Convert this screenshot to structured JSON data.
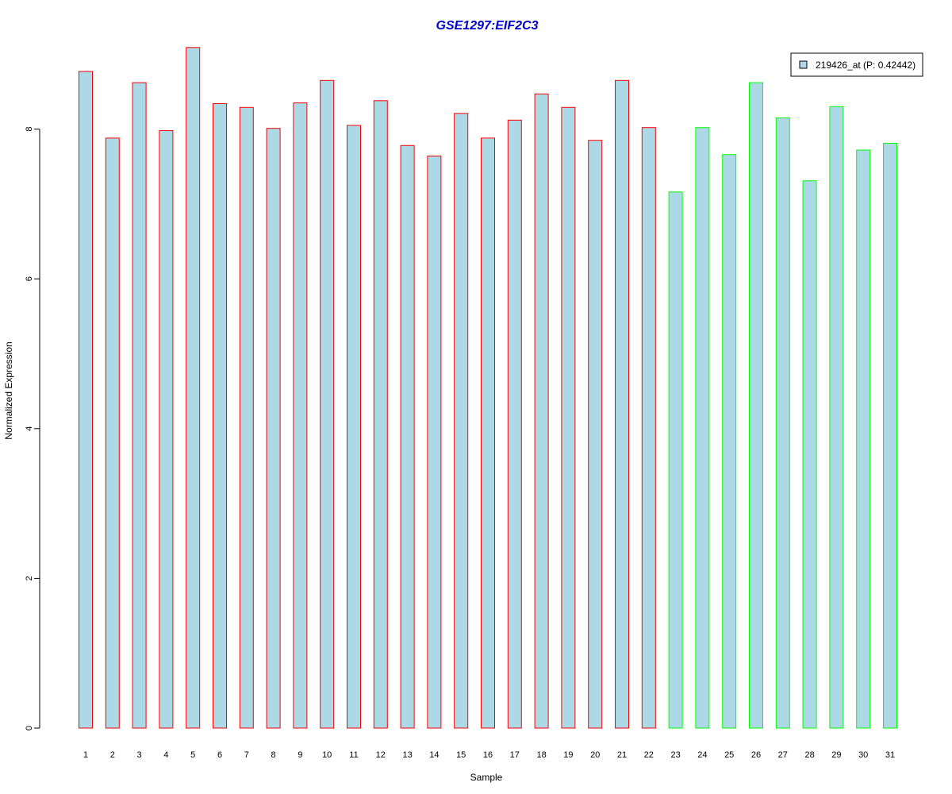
{
  "chart_data": {
    "type": "bar",
    "title": "GSE1297:EIF2C3",
    "xlabel": "Sample",
    "ylabel": "Normalized Expression",
    "categories": [
      "1",
      "2",
      "3",
      "4",
      "5",
      "6",
      "7",
      "8",
      "9",
      "10",
      "11",
      "12",
      "13",
      "14",
      "15",
      "16",
      "17",
      "18",
      "19",
      "20",
      "21",
      "22",
      "23",
      "24",
      "25",
      "26",
      "27",
      "28",
      "29",
      "30",
      "31"
    ],
    "series": [
      {
        "name": "219426_at (P: 0.42442)",
        "values": [
          8.77,
          7.88,
          8.62,
          7.98,
          9.09,
          8.34,
          8.29,
          8.01,
          8.35,
          8.65,
          8.05,
          8.38,
          7.78,
          7.64,
          8.21,
          7.88,
          8.12,
          8.47,
          8.29,
          7.85,
          8.65,
          8.02,
          7.16,
          8.02,
          7.66,
          8.62,
          8.15,
          7.31,
          8.3,
          7.72,
          7.81
        ]
      }
    ],
    "group_of_bar": [
      "g1",
      "g1",
      "g1",
      "g1",
      "g1",
      "g1",
      "g1",
      "g1",
      "g1",
      "g1",
      "g1",
      "g1",
      "g1",
      "g1",
      "g1",
      "g1",
      "g1",
      "g1",
      "g1",
      "g1",
      "g1",
      "g1",
      "g2",
      "g2",
      "g2",
      "g2",
      "g2",
      "g2",
      "g2",
      "g2",
      "g2"
    ],
    "ylim": [
      0,
      9.09
    ],
    "yticks": [
      0,
      2,
      4,
      6,
      8
    ],
    "grid": false,
    "legend_position": "top-right",
    "colors": {
      "bar_fill": "#ADD8E6",
      "border_g1": "#FF0000",
      "border_g2": "#00FF00",
      "title": "#0000CD",
      "axis": "#000000"
    }
  }
}
